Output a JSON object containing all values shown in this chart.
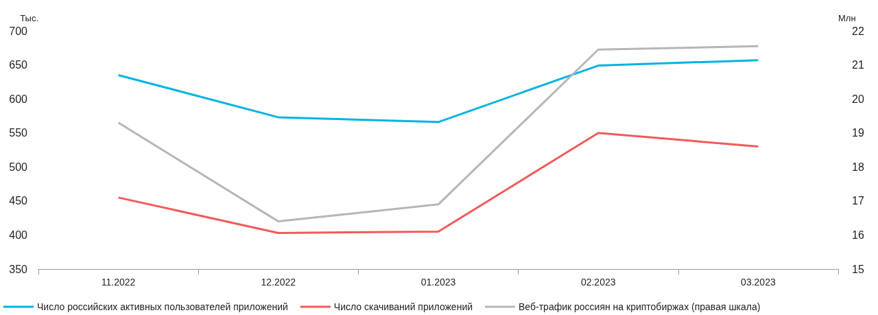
{
  "chart_data": {
    "type": "line",
    "ylabel": "Тыс.",
    "y2label": "Млн",
    "categories": [
      "11.2022",
      "12.2022",
      "01.2023",
      "02.2023",
      "03.2023"
    ],
    "series": [
      {
        "name": "Число российских активных пользователей приложений",
        "color": "#00b4e4",
        "values": [
          635,
          573,
          566,
          649,
          657
        ]
      },
      {
        "name": "Число скачиваний приложений",
        "color": "#f25a5a",
        "values": [
          455,
          403,
          405,
          550,
          530
        ]
      },
      {
        "name": "Веб-трафик россиян на криптобиржах (правая шкала)",
        "color": "#b6b6b6",
        "axis": "y2",
        "values": [
          19.3,
          16.4,
          16.9,
          21.45,
          21.55
        ]
      }
    ],
    "ylim": [
      350,
      700
    ],
    "yticks": [
      350,
      400,
      450,
      500,
      550,
      600,
      650,
      700
    ],
    "y2lim": [
      15,
      22
    ],
    "y2ticks": [
      15,
      16,
      17,
      18,
      19,
      20,
      21,
      22
    ],
    "grid": false,
    "legend": "bottom",
    "marker": "none",
    "line_style": "solid"
  }
}
